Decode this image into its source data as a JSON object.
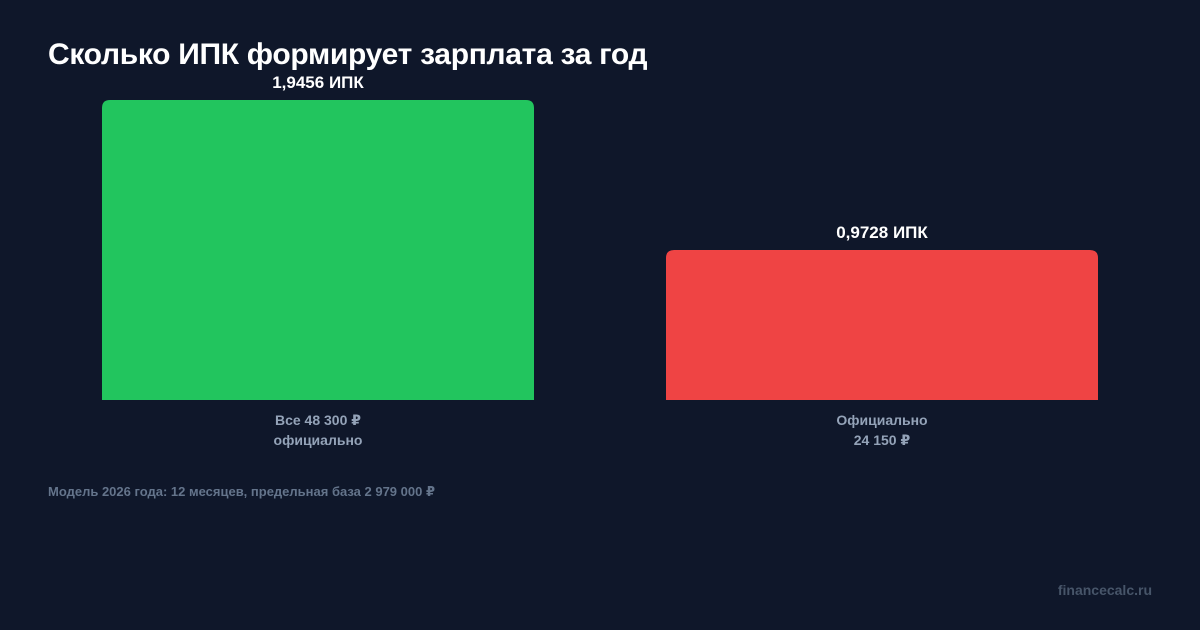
{
  "chart_data": {
    "type": "bar",
    "title": "Сколько ИПК формирует зарплата за год",
    "categories": [
      [
        "Все 48 300 ₽",
        "официально"
      ],
      [
        "Официально",
        "24 150 ₽"
      ]
    ],
    "values": [
      1.9456,
      0.9728
    ],
    "value_labels": [
      "1,9456 ИПК",
      "0,9728 ИПК"
    ],
    "colors": [
      "#22c55e",
      "#ef4444"
    ],
    "unit": "ИПК",
    "ylim": [
      0,
      1.9456
    ],
    "grid": false,
    "legend": "none"
  },
  "footnote": "Модель 2026 года: 12 месяцев, предельная база 2 979 000 ₽",
  "brand": "financecalc.ru",
  "colors": {
    "background": "#0f172a",
    "title": "#ffffff",
    "category_label": "#94a3b8",
    "footnote": "#64748b",
    "brand": "#475569"
  }
}
